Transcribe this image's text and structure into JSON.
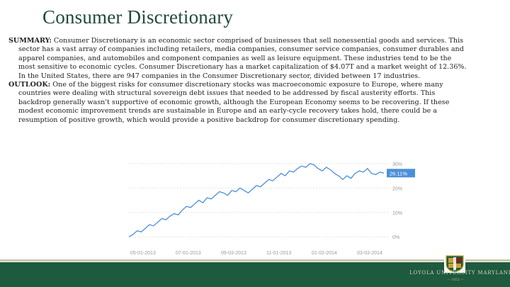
{
  "title": "Consumer Discretionary",
  "summary": {
    "label": "SUMMARY:",
    "text": " Consumer Discretionary is an economic sector comprised of businesses that sell nonessential goods and services. This sector has a vast array of companies including retailers, media companies, consumer service companies, consumer durables and apparel companies, and automobiles and component companies as well as leisure equipment. These industries tend to be the most sensitive to economic cycles. Consumer Discretionary has a market capitalization of $4.07T and a market weight of 12.36%. In the United States, there are 947 companies in the Consumer Discretionary sector, divided between 17 industries."
  },
  "outlook": {
    "label": "OUTLOOK:",
    "text": " One of the biggest risks for consumer discretionary stocks was macroeconomic exposure to Europe, where many countries were dealing with structural sovereign debt issues that needed to be addressed by fiscal austerity efforts. This backdrop generally wasn't supportive of economic growth, although the European Economy seems to be recovering. If these modest economic improvement trends are sustainable in Europe and an early-cycle recovery takes hold, there could be a resumption of positive growth, which would provide a positive backdrop for consumer discretionary spending."
  },
  "chart_data": {
    "type": "line",
    "x_ticks": [
      "05-01-2013",
      "07-01-2013",
      "09-03-2013",
      "11-01-2013",
      "01-02-2014",
      "03-03-2014"
    ],
    "y_ticks": [
      "0%",
      "10%",
      "20%",
      "30%"
    ],
    "ylim": [
      -4,
      32
    ],
    "current_label": "26.11%",
    "series": [
      {
        "values": [
          0,
          1,
          2.5,
          2,
          3.5,
          5,
          4.5,
          6,
          7.5,
          7,
          8.5,
          9.5,
          9,
          11,
          12.5,
          12,
          13.5,
          15,
          14,
          16,
          15.5,
          17,
          18.5,
          18,
          17,
          19,
          18.5,
          20,
          19,
          18,
          19.5,
          21,
          20.5,
          22,
          23.5,
          23,
          24.5,
          26,
          25,
          27,
          26.5,
          28,
          29,
          28.5,
          30,
          29.5,
          28,
          27,
          28.5,
          27.5,
          26,
          25,
          23.5,
          25,
          24,
          26,
          27,
          26.5,
          28,
          26,
          25.5,
          26.5,
          26.11
        ],
        "color": "#4a90d9"
      }
    ],
    "grid": true,
    "current_color": "#4a90d9"
  },
  "footer": {
    "university": "LOYOLA UNIVERSITY MARYLAND",
    "university_sub": "— 1852 —",
    "bar_color": "#1e5a3e"
  }
}
